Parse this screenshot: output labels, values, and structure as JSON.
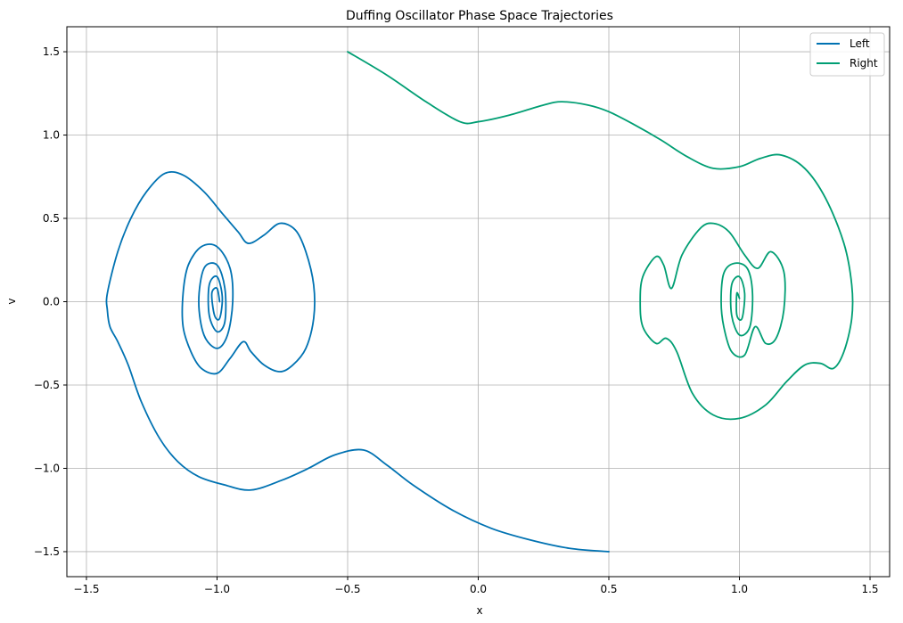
{
  "chart_data": {
    "type": "line",
    "title": "Duffing Oscillator Phase Space Trajectories",
    "xlabel": "x",
    "ylabel": "v",
    "xlim": [
      -1.575,
      1.575
    ],
    "ylim": [
      -1.65,
      1.65
    ],
    "xticks": [
      -1.5,
      -1.0,
      -0.5,
      0.0,
      0.5,
      1.0,
      1.5
    ],
    "xtick_labels": [
      "−1.5",
      "−1.0",
      "−0.5",
      "0.0",
      "0.5",
      "1.0",
      "1.5"
    ],
    "yticks": [
      -1.5,
      -1.0,
      -0.5,
      0.0,
      0.5,
      1.0,
      1.5
    ],
    "ytick_labels": [
      "−1.5",
      "−1.0",
      "−0.5",
      "0.0",
      "0.5",
      "1.0",
      "1.5"
    ],
    "grid": true,
    "legend_position": "top-right",
    "colors": {
      "left": "#0072B2",
      "right": "#009E73",
      "grid": "#b0b0b0"
    },
    "series": [
      {
        "name": "Left",
        "color": "#0072B2",
        "points": [
          [
            0.5,
            -1.5
          ],
          [
            0.35,
            -1.48
          ],
          [
            0.2,
            -1.43
          ],
          [
            0.05,
            -1.36
          ],
          [
            -0.1,
            -1.25
          ],
          [
            -0.25,
            -1.1
          ],
          [
            -0.35,
            -0.98
          ],
          [
            -0.44,
            -0.89
          ],
          [
            -0.55,
            -0.92
          ],
          [
            -0.65,
            -1.0
          ],
          [
            -0.75,
            -1.07
          ],
          [
            -0.87,
            -1.13
          ],
          [
            -0.97,
            -1.1
          ],
          [
            -1.07,
            -1.05
          ],
          [
            -1.15,
            -0.96
          ],
          [
            -1.22,
            -0.82
          ],
          [
            -1.29,
            -0.6
          ],
          [
            -1.34,
            -0.38
          ],
          [
            -1.38,
            -0.24
          ],
          [
            -1.41,
            -0.15
          ],
          [
            -1.42,
            -0.05
          ],
          [
            -1.42,
            0.05
          ],
          [
            -1.38,
            0.3
          ],
          [
            -1.33,
            0.5
          ],
          [
            -1.27,
            0.66
          ],
          [
            -1.2,
            0.77
          ],
          [
            -1.13,
            0.76
          ],
          [
            -1.05,
            0.66
          ],
          [
            -0.98,
            0.53
          ],
          [
            -0.92,
            0.42
          ],
          [
            -0.88,
            0.35
          ],
          [
            -0.82,
            0.4
          ],
          [
            -0.76,
            0.47
          ],
          [
            -0.7,
            0.43
          ],
          [
            -0.66,
            0.3
          ],
          [
            -0.63,
            0.1
          ],
          [
            -0.63,
            -0.1
          ],
          [
            -0.66,
            -0.28
          ],
          [
            -0.71,
            -0.38
          ],
          [
            -0.76,
            -0.42
          ],
          [
            -0.82,
            -0.38
          ],
          [
            -0.87,
            -0.3
          ],
          [
            -0.9,
            -0.24
          ],
          [
            -0.95,
            -0.34
          ],
          [
            -1.0,
            -0.43
          ],
          [
            -1.06,
            -0.4
          ],
          [
            -1.1,
            -0.3
          ],
          [
            -1.13,
            -0.15
          ],
          [
            -1.13,
            0.05
          ],
          [
            -1.11,
            0.22
          ],
          [
            -1.06,
            0.33
          ],
          [
            -1.0,
            0.33
          ],
          [
            -0.95,
            0.2
          ],
          [
            -0.94,
            0.0
          ],
          [
            -0.96,
            -0.2
          ],
          [
            -1.0,
            -0.28
          ],
          [
            -1.05,
            -0.2
          ],
          [
            -1.07,
            0.0
          ],
          [
            -1.05,
            0.2
          ],
          [
            -1.0,
            0.22
          ],
          [
            -0.97,
            0.08
          ],
          [
            -0.97,
            -0.12
          ],
          [
            -1.0,
            -0.18
          ],
          [
            -1.03,
            -0.08
          ],
          [
            -1.03,
            0.1
          ],
          [
            -1.0,
            0.15
          ],
          [
            -0.98,
            0.03
          ],
          [
            -0.99,
            -0.1
          ],
          [
            -1.01,
            -0.08
          ],
          [
            -1.02,
            0.05
          ],
          [
            -1.0,
            0.08
          ],
          [
            -0.99,
            0.0
          ]
        ]
      },
      {
        "name": "Right",
        "color": "#009E73",
        "points": [
          [
            -0.5,
            1.5
          ],
          [
            -0.35,
            1.36
          ],
          [
            -0.2,
            1.2
          ],
          [
            -0.07,
            1.08
          ],
          [
            0.0,
            1.08
          ],
          [
            0.12,
            1.12
          ],
          [
            0.25,
            1.18
          ],
          [
            0.32,
            1.2
          ],
          [
            0.42,
            1.18
          ],
          [
            0.5,
            1.14
          ],
          [
            0.6,
            1.06
          ],
          [
            0.7,
            0.97
          ],
          [
            0.8,
            0.87
          ],
          [
            0.9,
            0.8
          ],
          [
            1.0,
            0.81
          ],
          [
            1.08,
            0.86
          ],
          [
            1.16,
            0.88
          ],
          [
            1.25,
            0.8
          ],
          [
            1.33,
            0.62
          ],
          [
            1.4,
            0.35
          ],
          [
            1.43,
            0.1
          ],
          [
            1.43,
            -0.1
          ],
          [
            1.4,
            -0.3
          ],
          [
            1.36,
            -0.4
          ],
          [
            1.31,
            -0.37
          ],
          [
            1.25,
            -0.38
          ],
          [
            1.18,
            -0.48
          ],
          [
            1.1,
            -0.62
          ],
          [
            1.0,
            -0.7
          ],
          [
            0.9,
            -0.68
          ],
          [
            0.82,
            -0.55
          ],
          [
            0.76,
            -0.3
          ],
          [
            0.72,
            -0.22
          ],
          [
            0.68,
            -0.25
          ],
          [
            0.63,
            -0.15
          ],
          [
            0.62,
            0.0
          ],
          [
            0.63,
            0.15
          ],
          [
            0.68,
            0.27
          ],
          [
            0.71,
            0.22
          ],
          [
            0.74,
            0.08
          ],
          [
            0.78,
            0.28
          ],
          [
            0.85,
            0.44
          ],
          [
            0.9,
            0.47
          ],
          [
            0.96,
            0.42
          ],
          [
            1.02,
            0.28
          ],
          [
            1.07,
            0.2
          ],
          [
            1.12,
            0.3
          ],
          [
            1.17,
            0.18
          ],
          [
            1.17,
            -0.05
          ],
          [
            1.14,
            -0.22
          ],
          [
            1.1,
            -0.25
          ],
          [
            1.06,
            -0.15
          ],
          [
            1.02,
            -0.32
          ],
          [
            0.97,
            -0.3
          ],
          [
            0.94,
            -0.15
          ],
          [
            0.93,
            0.0
          ],
          [
            0.94,
            0.17
          ],
          [
            0.98,
            0.23
          ],
          [
            1.03,
            0.2
          ],
          [
            1.05,
            0.05
          ],
          [
            1.04,
            -0.15
          ],
          [
            1.0,
            -0.2
          ],
          [
            0.97,
            -0.08
          ],
          [
            0.97,
            0.1
          ],
          [
            1.0,
            0.15
          ],
          [
            1.02,
            0.05
          ],
          [
            1.01,
            -0.1
          ],
          [
            0.99,
            -0.08
          ],
          [
            0.99,
            0.05
          ],
          [
            1.0,
            0.02
          ]
        ]
      }
    ]
  }
}
